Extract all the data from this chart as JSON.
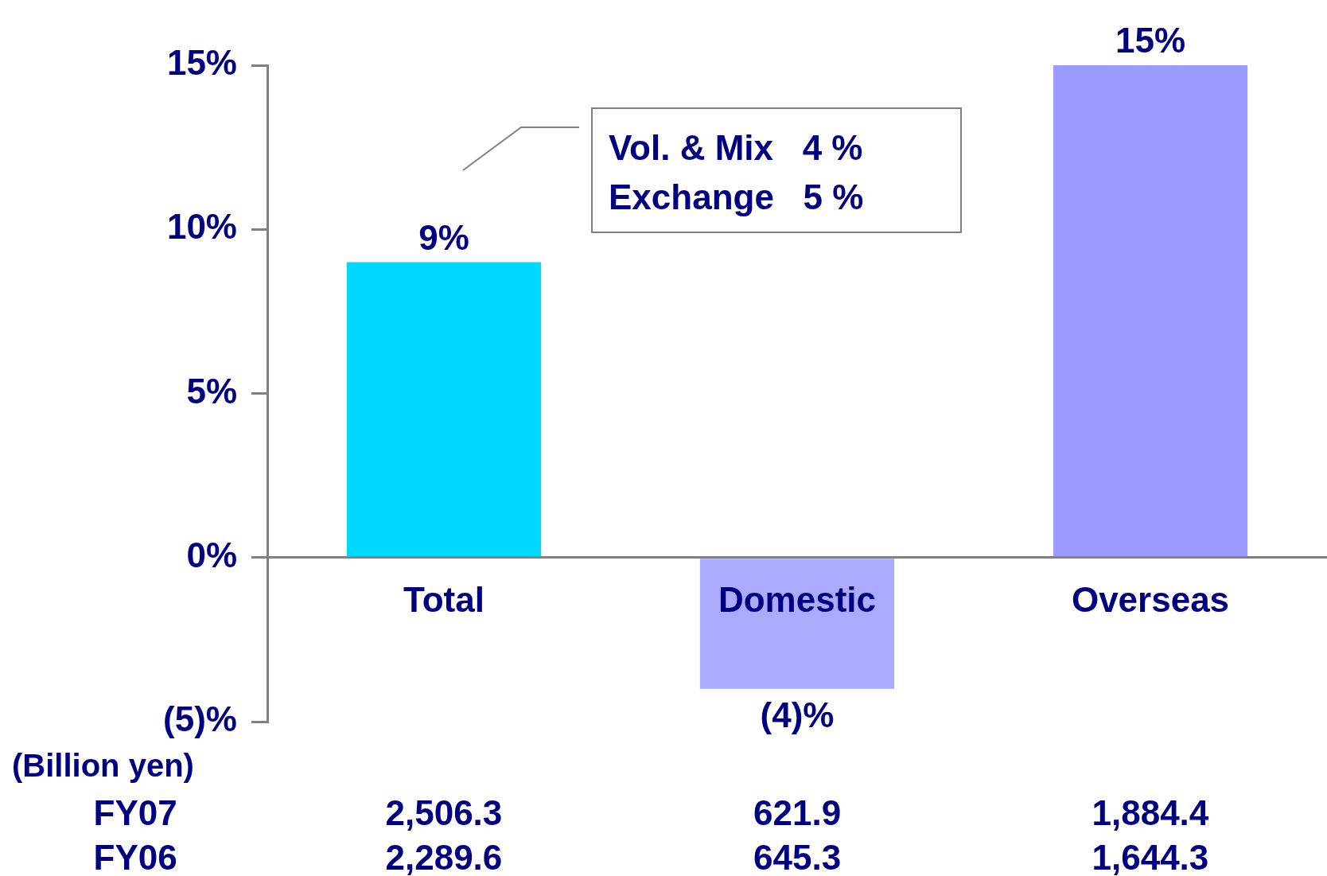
{
  "chart_data": {
    "type": "bar",
    "categories": [
      "Total",
      "Domestic",
      "Overseas"
    ],
    "values": [
      9,
      -4,
      15
    ],
    "colors": [
      "#00d8ff",
      "#aaaaff",
      "#9a9aff"
    ],
    "value_labels": [
      "9%",
      "(4)%",
      "15%"
    ],
    "ylim": [
      -5,
      15
    ],
    "yticks": [
      {
        "value": -5,
        "label": "(5)%"
      },
      {
        "value": 0,
        "label": "0%"
      },
      {
        "value": 5,
        "label": "5%"
      },
      {
        "value": 10,
        "label": "10%"
      },
      {
        "value": 15,
        "label": "15%"
      }
    ],
    "grid": false,
    "legend": false,
    "annotations": [
      "Vol. & Mix   4 %",
      "Exchange   5 %",
      "(Billion yen)",
      "FY07",
      "2,506.3",
      "621.9",
      "1,884.4",
      "FY06",
      "2,289.6",
      "645.3",
      "1,644.3"
    ]
  }
}
